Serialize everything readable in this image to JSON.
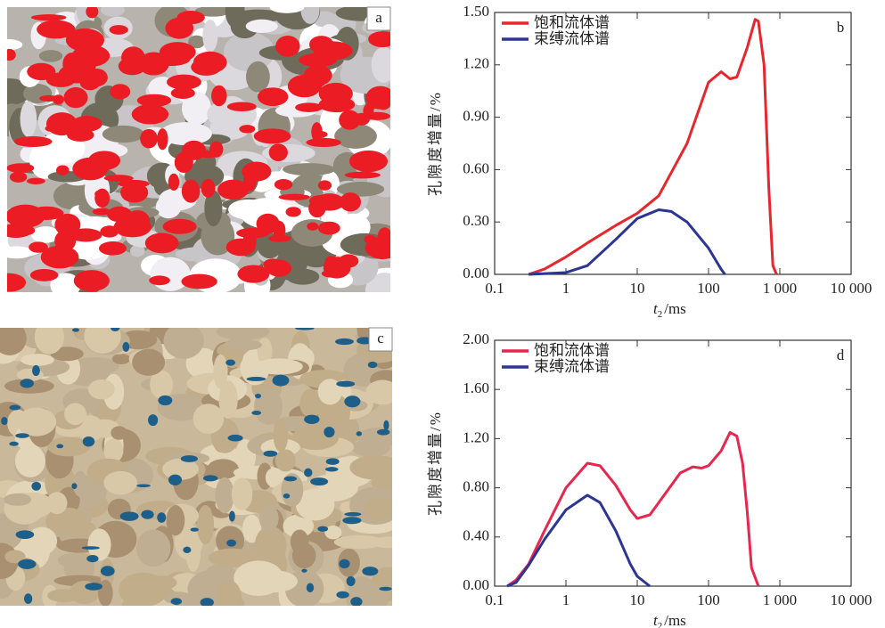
{
  "figures": [
    {
      "label": "a"
    },
    {
      "label": "c"
    }
  ],
  "chart_data": [
    {
      "type": "line",
      "panel_label": "b",
      "ylabel": "孔隙度增量/%",
      "xlabel": {
        "var": "t",
        "sub": "2",
        "unit": "/ms"
      },
      "xscale": "log",
      "xlim": [
        0.1,
        10000
      ],
      "xticks": [
        0.1,
        1,
        10,
        100,
        {
          "value": 1000,
          "label": "1 000"
        },
        {
          "value": 10000,
          "label": "10 000"
        }
      ],
      "ylim": [
        0,
        1.5
      ],
      "yticks": [
        {
          "value": 0,
          "label": "0.00"
        },
        {
          "value": 0.3,
          "label": "0.30"
        },
        {
          "value": 0.6,
          "label": "0.60"
        },
        {
          "value": 0.9,
          "label": "0.90"
        },
        {
          "value": 1.2,
          "label": "1.20"
        },
        {
          "value": 1.5,
          "label": "1.50"
        }
      ],
      "legend": "top-left",
      "series": [
        {
          "name": "饱和流体谱",
          "color": "#e8262b",
          "x": [
            0.3,
            0.5,
            1,
            2,
            5,
            10,
            20,
            50,
            100,
            150,
            200,
            250,
            350,
            450,
            500,
            600,
            700,
            800,
            900
          ],
          "values": [
            0,
            0.03,
            0.1,
            0.18,
            0.28,
            0.35,
            0.45,
            0.75,
            1.1,
            1.16,
            1.12,
            1.13,
            1.3,
            1.46,
            1.45,
            1.2,
            0.5,
            0.05,
            0
          ]
        },
        {
          "name": "束缚流体谱",
          "color": "#2b3593",
          "x": [
            0.3,
            1,
            2,
            5,
            10,
            20,
            30,
            50,
            100,
            150,
            170
          ],
          "values": [
            0,
            0.01,
            0.05,
            0.2,
            0.32,
            0.37,
            0.36,
            0.3,
            0.15,
            0.03,
            0
          ]
        }
      ]
    },
    {
      "type": "line",
      "panel_label": "d",
      "ylabel": "孔隙度增量/%",
      "xlabel": {
        "var": "t",
        "sub": "2",
        "unit": "/ms"
      },
      "xscale": "log",
      "xlim": [
        0.1,
        10000
      ],
      "xticks": [
        0.1,
        1,
        10,
        100,
        {
          "value": 1000,
          "label": "1 000"
        },
        {
          "value": 10000,
          "label": "10 000"
        }
      ],
      "ylim": [
        0,
        2
      ],
      "yticks": [
        {
          "value": 0,
          "label": "0.00"
        },
        {
          "value": 0.4,
          "label": "0.40"
        },
        {
          "value": 0.8,
          "label": "0.80"
        },
        {
          "value": 1.2,
          "label": "1.20"
        },
        {
          "value": 1.6,
          "label": "1.60"
        },
        {
          "value": 2,
          "label": "2.00"
        }
      ],
      "legend": "top-left",
      "series": [
        {
          "name": "饱和流体谱",
          "color": "#e8264e",
          "x": [
            0.15,
            0.2,
            0.3,
            0.5,
            1,
            2,
            3,
            5,
            8,
            10,
            15,
            20,
            40,
            60,
            80,
            100,
            150,
            200,
            250,
            300,
            350,
            400,
            500
          ],
          "values": [
            0,
            0.05,
            0.18,
            0.45,
            0.8,
            1.0,
            0.98,
            0.82,
            0.62,
            0.55,
            0.58,
            0.68,
            0.92,
            0.97,
            0.96,
            0.98,
            1.1,
            1.25,
            1.22,
            1.0,
            0.6,
            0.15,
            0
          ]
        },
        {
          "name": "束缚流体谱",
          "color": "#2b3593",
          "x": [
            0.15,
            0.2,
            0.3,
            0.5,
            1,
            2,
            3,
            5,
            8,
            10,
            15
          ],
          "values": [
            0,
            0.03,
            0.17,
            0.38,
            0.62,
            0.74,
            0.68,
            0.45,
            0.18,
            0.08,
            0
          ]
        }
      ]
    }
  ]
}
